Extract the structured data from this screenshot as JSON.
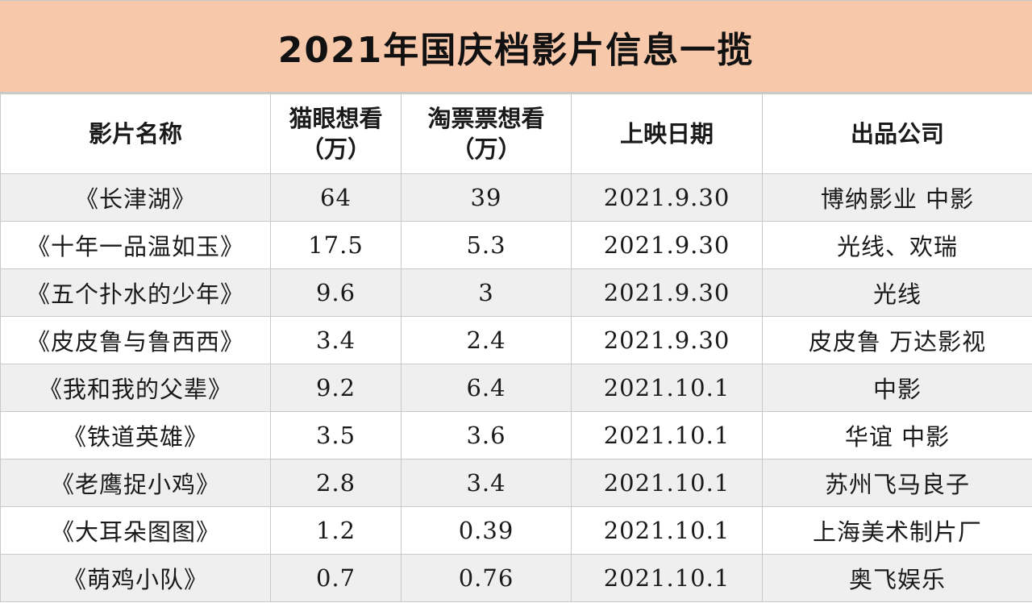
{
  "title": "2021年国庆档影片信息一揽",
  "table": {
    "headers": [
      {
        "line1": "影片名称",
        "line2": ""
      },
      {
        "line1": "猫眼想看",
        "line2": "（万）"
      },
      {
        "line1": "淘票票想看",
        "line2": "（万）"
      },
      {
        "line1": "上映日期",
        "line2": ""
      },
      {
        "line1": "出品公司",
        "line2": ""
      }
    ],
    "rows": [
      {
        "name": "《长津湖》",
        "maoyan": "64",
        "taopiaopiao": "39",
        "date": "2021.9.30",
        "company": "博纳影业 中影"
      },
      {
        "name": "《十年一品温如玉》",
        "maoyan": "17.5",
        "taopiaopiao": "5.3",
        "date": "2021.9.30",
        "company": "光线、欢瑞"
      },
      {
        "name": "《五个扑水的少年》",
        "maoyan": "9.6",
        "taopiaopiao": "3",
        "date": "2021.9.30",
        "company": "光线"
      },
      {
        "name": "《皮皮鲁与鲁西西》",
        "maoyan": "3.4",
        "taopiaopiao": "2.4",
        "date": "2021.9.30",
        "company": "皮皮鲁 万达影视"
      },
      {
        "name": "《我和我的父辈》",
        "maoyan": "9.2",
        "taopiaopiao": "6.4",
        "date": "2021.10.1",
        "company": "中影"
      },
      {
        "name": "《铁道英雄》",
        "maoyan": "3.5",
        "taopiaopiao": "3.6",
        "date": "2021.10.1",
        "company": "华谊 中影"
      },
      {
        "name": "《老鹰捉小鸡》",
        "maoyan": "2.8",
        "taopiaopiao": "3.4",
        "date": "2021.10.1",
        "company": "苏州飞马良子"
      },
      {
        "name": "《大耳朵图图》",
        "maoyan": "1.2",
        "taopiaopiao": "0.39",
        "date": "2021.10.1",
        "company": "上海美术制片厂"
      },
      {
        "name": "《萌鸡小队》",
        "maoyan": "0.7",
        "taopiaopiao": "0.76",
        "date": "2021.10.1",
        "company": "奥飞娱乐"
      }
    ]
  },
  "colors": {
    "title_background": "#f7c8aa",
    "striped_row": "#efefef",
    "border": "#c9c9c9"
  }
}
